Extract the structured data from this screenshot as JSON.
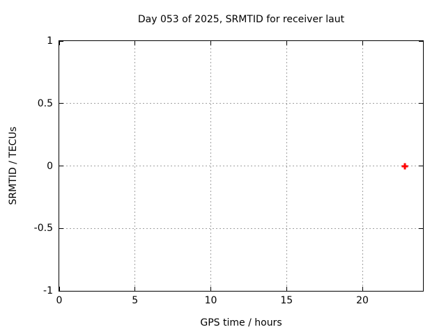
{
  "chart_data": {
    "type": "scatter",
    "title": "Day 053 of 2025, SRMTID for receiver laut",
    "xlabel": "GPS time / hours",
    "ylabel": "SRMTID / TECUs",
    "xlim": [
      0,
      24
    ],
    "ylim": [
      -1,
      1
    ],
    "xticks": [
      {
        "value": 0,
        "label": "0"
      },
      {
        "value": 5,
        "label": "5"
      },
      {
        "value": 10,
        "label": "10"
      },
      {
        "value": 15,
        "label": "15"
      },
      {
        "value": 20,
        "label": "20"
      }
    ],
    "yticks": [
      {
        "value": 1,
        "label": "1"
      },
      {
        "value": 0.5,
        "label": "0.5"
      },
      {
        "value": 0,
        "label": "0"
      },
      {
        "value": -0.5,
        "label": "-0.5"
      },
      {
        "value": -1,
        "label": "-1"
      }
    ],
    "grid": true,
    "grid_style": "dashed",
    "legend": "none",
    "series": [
      {
        "marker": "plus",
        "color": "#ff0000",
        "points": [
          [
            22.8,
            0
          ]
        ]
      }
    ],
    "colors": {
      "background": "#ffffff",
      "frame": "#000000",
      "text": "#000000",
      "grid": "#a0a0a0",
      "point": "#ff0000"
    }
  }
}
